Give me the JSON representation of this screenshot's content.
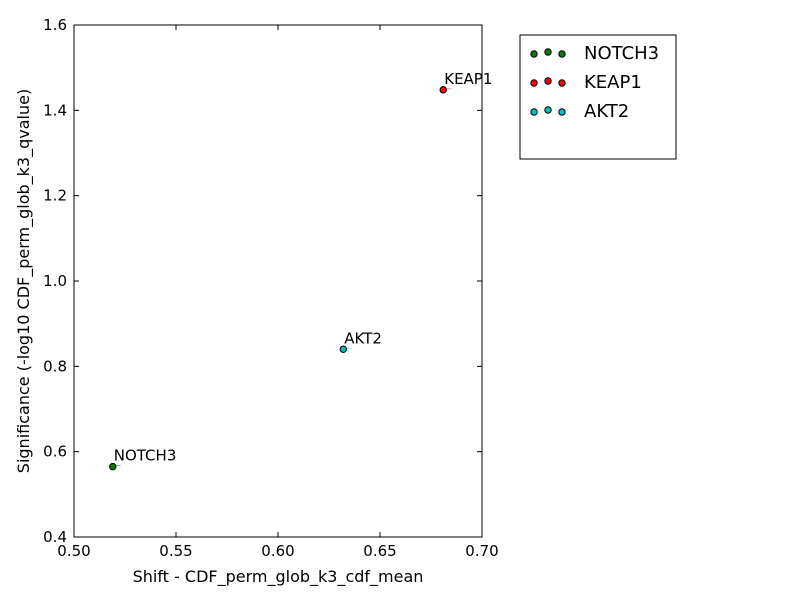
{
  "chart_data": {
    "type": "scatter",
    "title": "",
    "xlabel": "Shift - CDF_perm_glob_k3_cdf_mean",
    "ylabel": "Significance (-log10 CDF_perm_glob_k3_qvalue)",
    "xlim": [
      0.5,
      0.7
    ],
    "ylim": [
      0.4,
      1.6
    ],
    "xticks": [
      0.5,
      0.55,
      0.6,
      0.65,
      0.7
    ],
    "xtick_labels": [
      "0.50",
      "0.55",
      "0.60",
      "0.65",
      "0.70"
    ],
    "yticks": [
      0.4,
      0.6,
      0.8,
      1.0,
      1.2,
      1.4,
      1.6
    ],
    "ytick_labels": [
      "0.4",
      "0.6",
      "0.8",
      "1.0",
      "1.2",
      "1.4",
      "1.6"
    ],
    "grid": false,
    "legend_position": "outside-top-right",
    "series": [
      {
        "name": "NOTCH3",
        "color": "#008000",
        "points": [
          {
            "x": 0.519,
            "y": 0.565,
            "label": "NOTCH3"
          }
        ]
      },
      {
        "name": "KEAP1",
        "color": "#ff0000",
        "points": [
          {
            "x": 0.681,
            "y": 1.448,
            "label": "KEAP1"
          }
        ]
      },
      {
        "name": "AKT2",
        "color": "#00bfbf",
        "points": [
          {
            "x": 0.632,
            "y": 0.84,
            "label": "AKT2"
          }
        ]
      }
    ]
  }
}
